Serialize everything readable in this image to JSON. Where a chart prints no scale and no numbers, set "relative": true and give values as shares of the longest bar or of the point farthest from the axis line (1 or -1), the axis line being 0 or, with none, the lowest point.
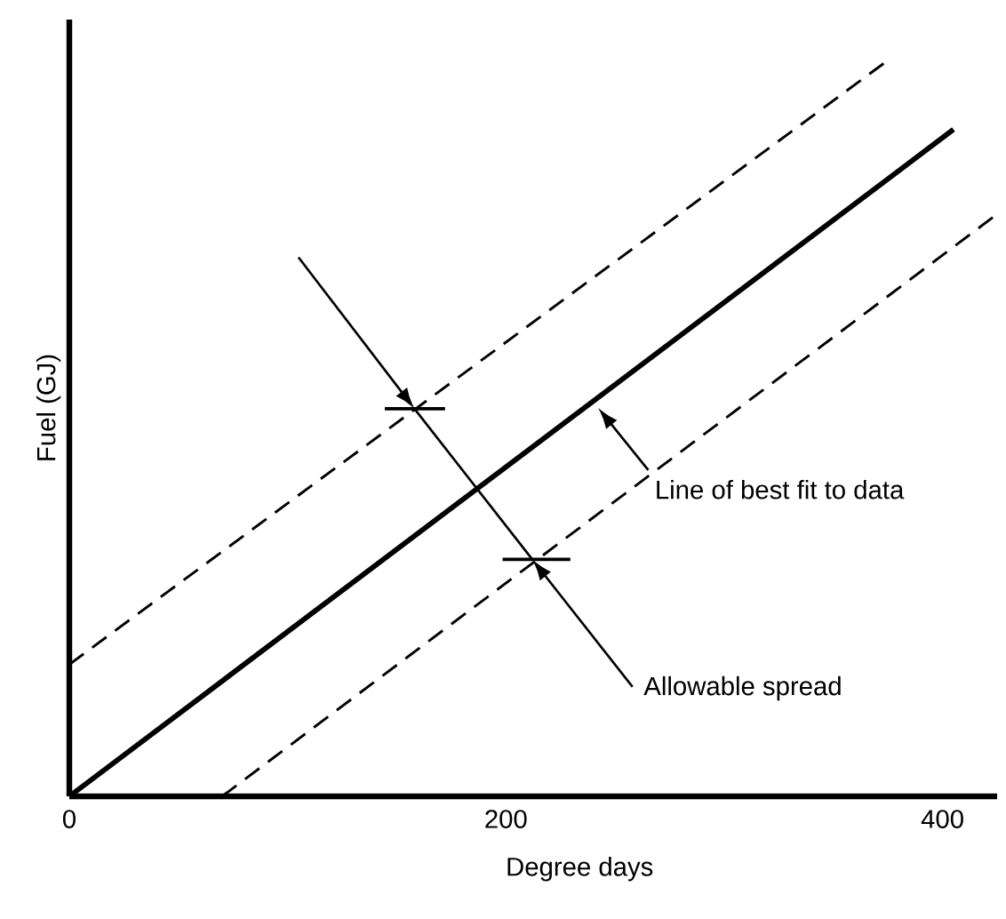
{
  "chart_data": {
    "type": "line",
    "relative": true,
    "xlabel": "Degree days",
    "ylabel": "Fuel (GJ)",
    "xlim": [
      0,
      425
    ],
    "xticks": [
      0,
      200,
      400
    ],
    "series": [
      {
        "x": [
          0,
          373
        ],
        "values": [
          0.18,
          1
        ],
        "color": "#000000",
        "line_style": "dashed"
      },
      {
        "x": [
          0,
          405
        ],
        "values": [
          0,
          0.91
        ],
        "color": "#000000",
        "line_style": "solid"
      },
      {
        "x": [
          70,
          423
        ],
        "values": [
          0,
          0.79
        ],
        "color": "#000000",
        "line_style": "dashed"
      }
    ],
    "annotations": [
      "Line of best fit to data",
      "Allowable spread"
    ],
    "grid": false,
    "marker": "none"
  }
}
